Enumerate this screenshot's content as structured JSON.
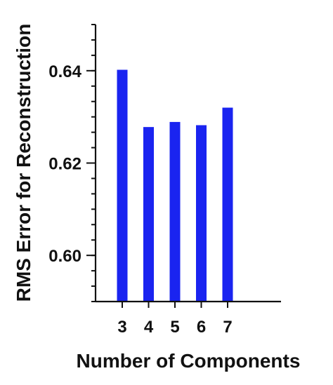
{
  "chart_data": {
    "type": "bar",
    "title": "",
    "xlabel": "Number of Components",
    "ylabel": "RMS Error for Reconstruction",
    "categories": [
      "3",
      "4",
      "5",
      "6",
      "7"
    ],
    "values": [
      0.6402,
      0.6278,
      0.6289,
      0.6282,
      0.632
    ],
    "ylim": [
      0.59,
      0.65
    ],
    "yticks": [
      0.6,
      0.62,
      0.64
    ],
    "ytick_labels": [
      "0.60",
      "0.62",
      "0.64"
    ],
    "minor_tick_step": 0.0033333,
    "grid": false,
    "legend": "none",
    "bar_color": "#1a24f0"
  }
}
